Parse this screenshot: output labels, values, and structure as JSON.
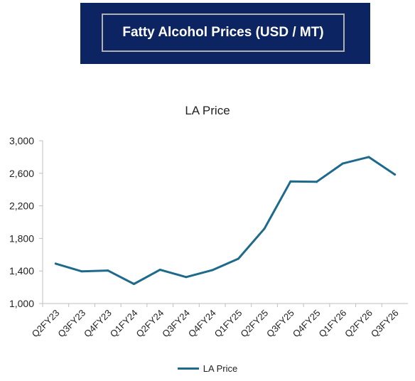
{
  "banner": {
    "title": "Fatty Alcohol Prices (USD / MT)"
  },
  "colors": {
    "banner_bg": "#0c2461",
    "series": "#1e6a8d"
  },
  "chart_data": {
    "type": "line",
    "title": "LA Price",
    "xlabel": "",
    "ylabel": "",
    "categories": [
      "Q2FY23",
      "Q3FY23",
      "Q4FY23",
      "Q1FY24",
      "Q2FY24",
      "Q3FY24",
      "Q4FY24",
      "Q1FY25",
      "Q2FY25",
      "Q3FY25",
      "Q4FY25",
      "Q1FY26",
      "Q2FY26",
      "Q3FY26"
    ],
    "series": [
      {
        "name": "LA Price",
        "values": [
          1490,
          1395,
          1405,
          1240,
          1415,
          1325,
          1410,
          1550,
          1920,
          2500,
          2495,
          2720,
          2800,
          2585
        ]
      }
    ],
    "ylim": [
      1000,
      3000
    ],
    "yticks": [
      1000,
      1400,
      1800,
      2200,
      2600,
      3000
    ],
    "ytick_labels": [
      "1,000",
      "1,400",
      "1,800",
      "2,200",
      "2,600",
      "3,000"
    ],
    "grid": false,
    "legend_position": "bottom"
  }
}
